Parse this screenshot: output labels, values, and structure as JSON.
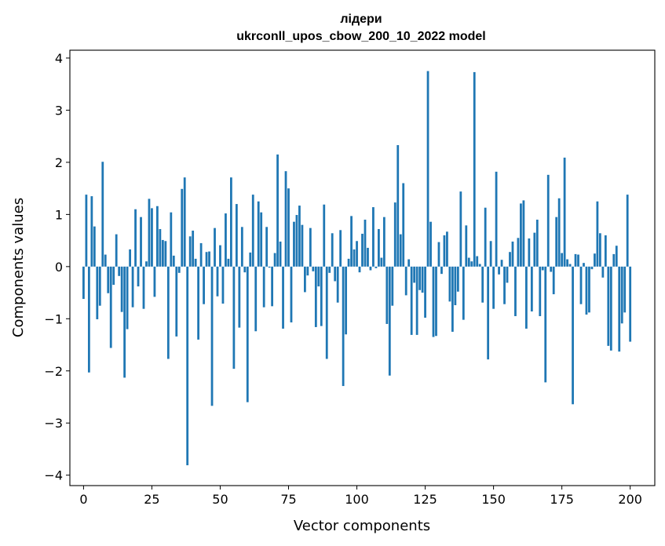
{
  "chart_data": {
    "type": "bar",
    "title": "лідери",
    "subtitle": "ukrconll_upos_cbow_200_10_2022 model",
    "xlabel": "Vector components",
    "ylabel": "Components values",
    "xlim": [
      -5,
      209
    ],
    "ylim": [
      -4.2,
      4.15
    ],
    "xticks": [
      0,
      25,
      50,
      75,
      100,
      125,
      150,
      175,
      200
    ],
    "yticks": [
      -4,
      -3,
      -2,
      -1,
      0,
      1,
      2,
      3,
      4
    ],
    "xtick_labels": [
      "0",
      "25",
      "50",
      "75",
      "100",
      "125",
      "150",
      "175",
      "200"
    ],
    "ytick_labels": [
      "−4",
      "−3",
      "−2",
      "−1",
      "0",
      "1",
      "2",
      "3",
      "4"
    ],
    "grid": false,
    "bar_color": "#1f77b4",
    "values": [
      -0.62,
      1.38,
      -2.03,
      1.35,
      0.77,
      -1.01,
      -0.75,
      2.01,
      0.23,
      -0.51,
      -1.56,
      -0.35,
      0.62,
      -0.18,
      -0.87,
      -2.13,
      -1.2,
      0.33,
      -0.78,
      1.1,
      -0.38,
      0.95,
      -0.81,
      0.1,
      1.3,
      1.12,
      -0.58,
      1.16,
      0.72,
      0.51,
      0.49,
      -1.77,
      1.04,
      0.21,
      -1.34,
      -0.12,
      1.49,
      1.71,
      -3.81,
      0.58,
      0.69,
      0.15,
      -1.4,
      0.45,
      -0.72,
      0.28,
      0.29,
      -2.67,
      0.74,
      -0.57,
      0.41,
      -0.71,
      1.02,
      0.15,
      1.71,
      -1.96,
      1.2,
      -1.17,
      0.76,
      -0.11,
      -2.6,
      0.27,
      1.38,
      -1.24,
      1.25,
      1.04,
      -0.78,
      0.76,
      -0.02,
      -0.76,
      0.26,
      2.15,
      0.48,
      -1.19,
      1.83,
      1.5,
      -1.07,
      0.86,
      0.99,
      1.17,
      0.8,
      -0.49,
      -0.17,
      0.74,
      -0.09,
      -1.16,
      -0.38,
      -1.14,
      1.19,
      -1.77,
      -0.12,
      0.64,
      -0.28,
      -0.69,
      0.7,
      -2.29,
      -1.3,
      0.15,
      0.97,
      0.33,
      0.49,
      -0.11,
      0.63,
      0.9,
      0.36,
      -0.07,
      1.14,
      -0.03,
      0.72,
      0.17,
      0.95,
      -1.1,
      -2.09,
      -0.75,
      1.23,
      2.33,
      0.62,
      1.6,
      -0.55,
      0.14,
      -1.31,
      -0.31,
      -1.31,
      -0.45,
      -0.5,
      -0.98,
      3.75,
      0.86,
      -1.35,
      -1.33,
      0.47,
      -0.14,
      0.6,
      0.67,
      -0.67,
      -1.25,
      -0.74,
      -0.48,
      1.44,
      -1.02,
      0.79,
      0.17,
      0.1,
      3.73,
      0.2,
      0.05,
      -0.69,
      1.13,
      -1.78,
      0.49,
      -0.81,
      1.82,
      -0.15,
      0.13,
      -0.72,
      -0.31,
      0.28,
      0.48,
      -0.95,
      0.55,
      1.21,
      1.27,
      -1.19,
      0.54,
      -0.86,
      0.65,
      0.9,
      -0.95,
      -0.07,
      -2.22,
      1.76,
      -0.1,
      -0.53,
      0.95,
      1.31,
      0.26,
      2.09,
      0.14,
      0.05,
      -2.64,
      0.24,
      0.23,
      -0.72,
      0.07,
      -0.92,
      -0.88,
      -0.05,
      0.25,
      1.25,
      0.64,
      -0.21,
      0.6,
      -1.52,
      -1.61,
      0.24,
      0.4,
      -1.63,
      -1.09,
      -0.88,
      1.38,
      -1.44
    ]
  }
}
